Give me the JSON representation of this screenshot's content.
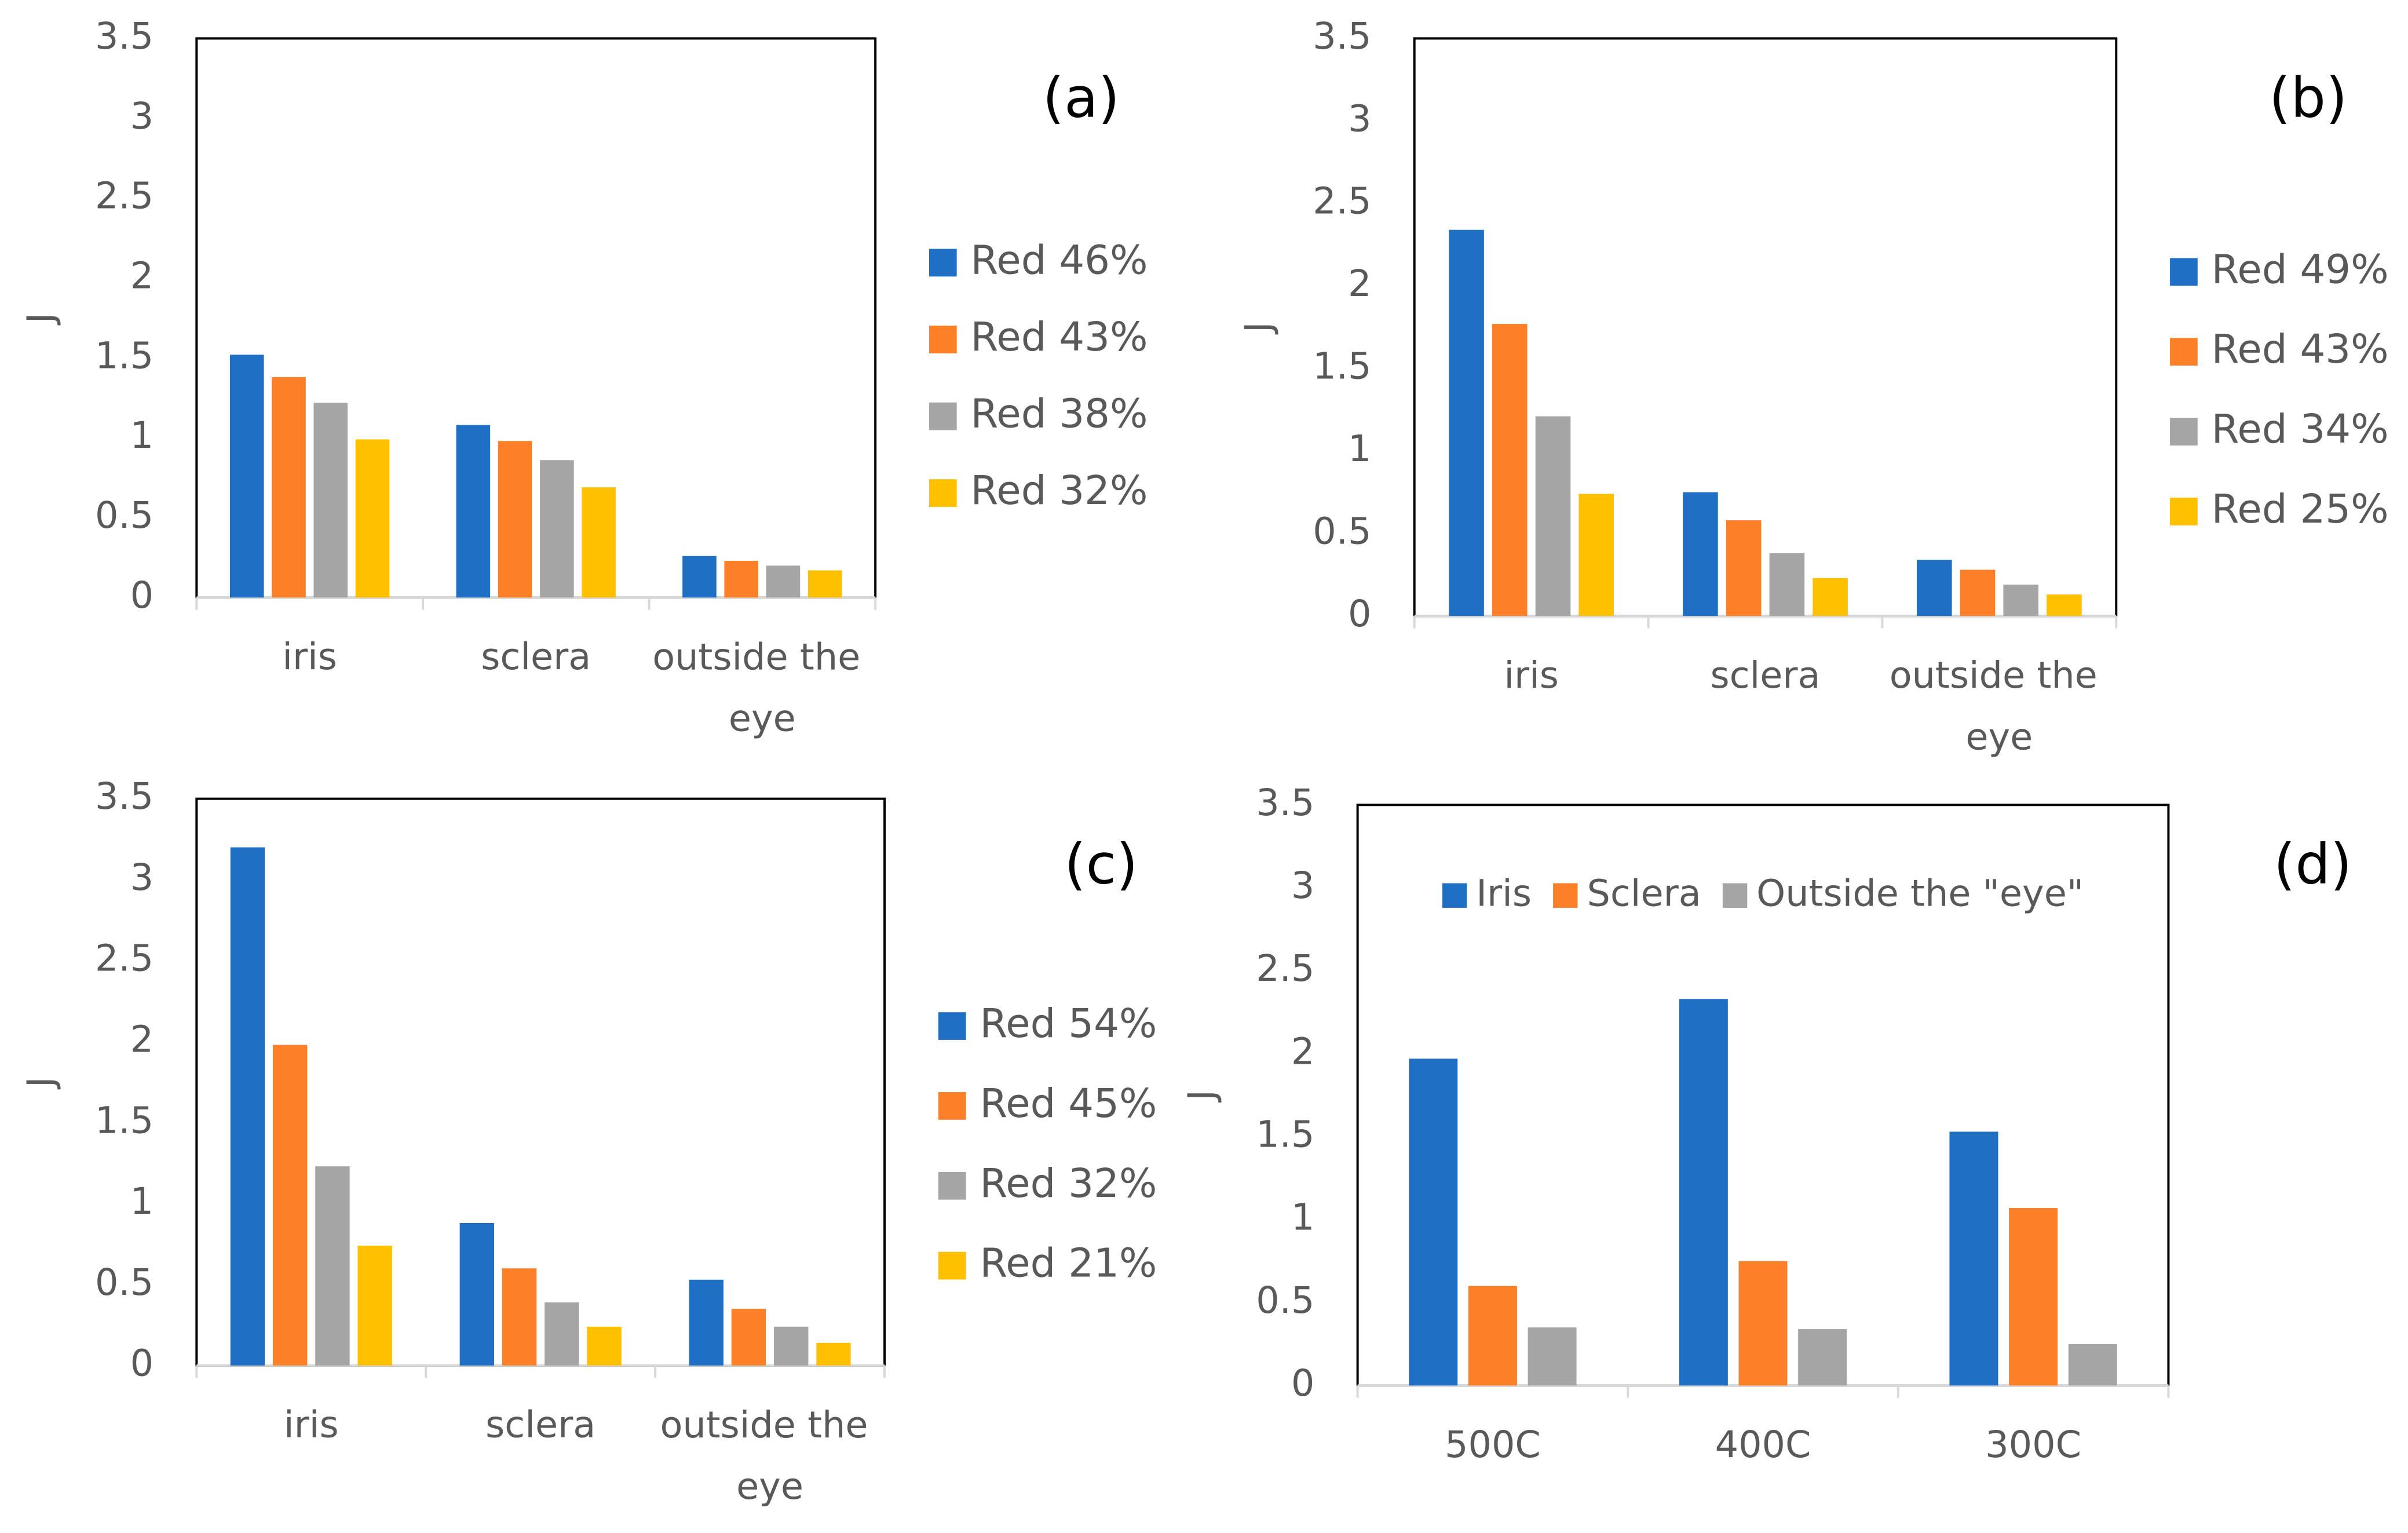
{
  "chart_data": [
    {
      "type": "bar",
      "label": "(a)",
      "ylabel": "J",
      "categories": [
        "iris",
        "sclera",
        "outside the eye"
      ],
      "series": [
        {
          "name": "Red 46%",
          "color": "#1f6fc5",
          "values": [
            1.52,
            1.08,
            0.26
          ]
        },
        {
          "name": "Red 43%",
          "color": "#fd7f27",
          "values": [
            1.38,
            0.98,
            0.23
          ]
        },
        {
          "name": "Red 38%",
          "color": "#a5a5a5",
          "values": [
            1.22,
            0.86,
            0.2
          ]
        },
        {
          "name": "Red 32%",
          "color": "#ffc000",
          "values": [
            0.99,
            0.69,
            0.17
          ]
        }
      ],
      "ylim": [
        0,
        3.5
      ],
      "yticks": [
        0,
        0.5,
        1,
        1.5,
        2,
        2.5,
        3,
        3.5
      ],
      "legend": "right"
    },
    {
      "type": "bar",
      "label": "(b)",
      "ylabel": "J",
      "categories": [
        "iris",
        "sclera",
        "outside the eye"
      ],
      "series": [
        {
          "name": "Red 49%",
          "color": "#1f6fc5",
          "values": [
            2.34,
            0.75,
            0.34
          ]
        },
        {
          "name": "Red 43%",
          "color": "#fd7f27",
          "values": [
            1.77,
            0.58,
            0.28
          ]
        },
        {
          "name": "Red 34%",
          "color": "#a5a5a5",
          "values": [
            1.21,
            0.38,
            0.19
          ]
        },
        {
          "name": "Red 25%",
          "color": "#ffc000",
          "values": [
            0.74,
            0.23,
            0.13
          ]
        }
      ],
      "ylim": [
        0,
        3.5
      ],
      "yticks": [
        0,
        0.5,
        1,
        1.5,
        2,
        2.5,
        3,
        3.5
      ],
      "legend": "right"
    },
    {
      "type": "bar",
      "label": "(c)",
      "ylabel": "J",
      "categories": [
        "iris",
        "sclera",
        "outside the eye"
      ],
      "series": [
        {
          "name": "Red 54%",
          "color": "#1f6fc5",
          "values": [
            3.2,
            0.88,
            0.53
          ]
        },
        {
          "name": "Red 45%",
          "color": "#fd7f27",
          "values": [
            1.98,
            0.6,
            0.35
          ]
        },
        {
          "name": "Red 32%",
          "color": "#a5a5a5",
          "values": [
            1.23,
            0.39,
            0.24
          ]
        },
        {
          "name": "Red 21%",
          "color": "#ffc000",
          "values": [
            0.74,
            0.24,
            0.14
          ]
        }
      ],
      "ylim": [
        0,
        3.5
      ],
      "yticks": [
        0,
        0.5,
        1,
        1.5,
        2,
        2.5,
        3,
        3.5
      ],
      "legend": "right"
    },
    {
      "type": "bar",
      "label": "(d)",
      "ylabel": "J",
      "categories": [
        "500C",
        "400C",
        "300C"
      ],
      "series": [
        {
          "name": "Iris",
          "color": "#1f6fc5",
          "values": [
            1.97,
            2.33,
            1.53
          ]
        },
        {
          "name": "Sclera",
          "color": "#fd7f27",
          "values": [
            0.6,
            0.75,
            1.07
          ]
        },
        {
          "name": "Outside the \"eye\"",
          "color": "#a5a5a5",
          "values": [
            0.35,
            0.34,
            0.25
          ]
        }
      ],
      "ylim": [
        0,
        3.5
      ],
      "yticks": [
        0,
        0.5,
        1,
        1.5,
        2,
        2.5,
        3,
        3.5
      ],
      "legend": "top"
    }
  ]
}
